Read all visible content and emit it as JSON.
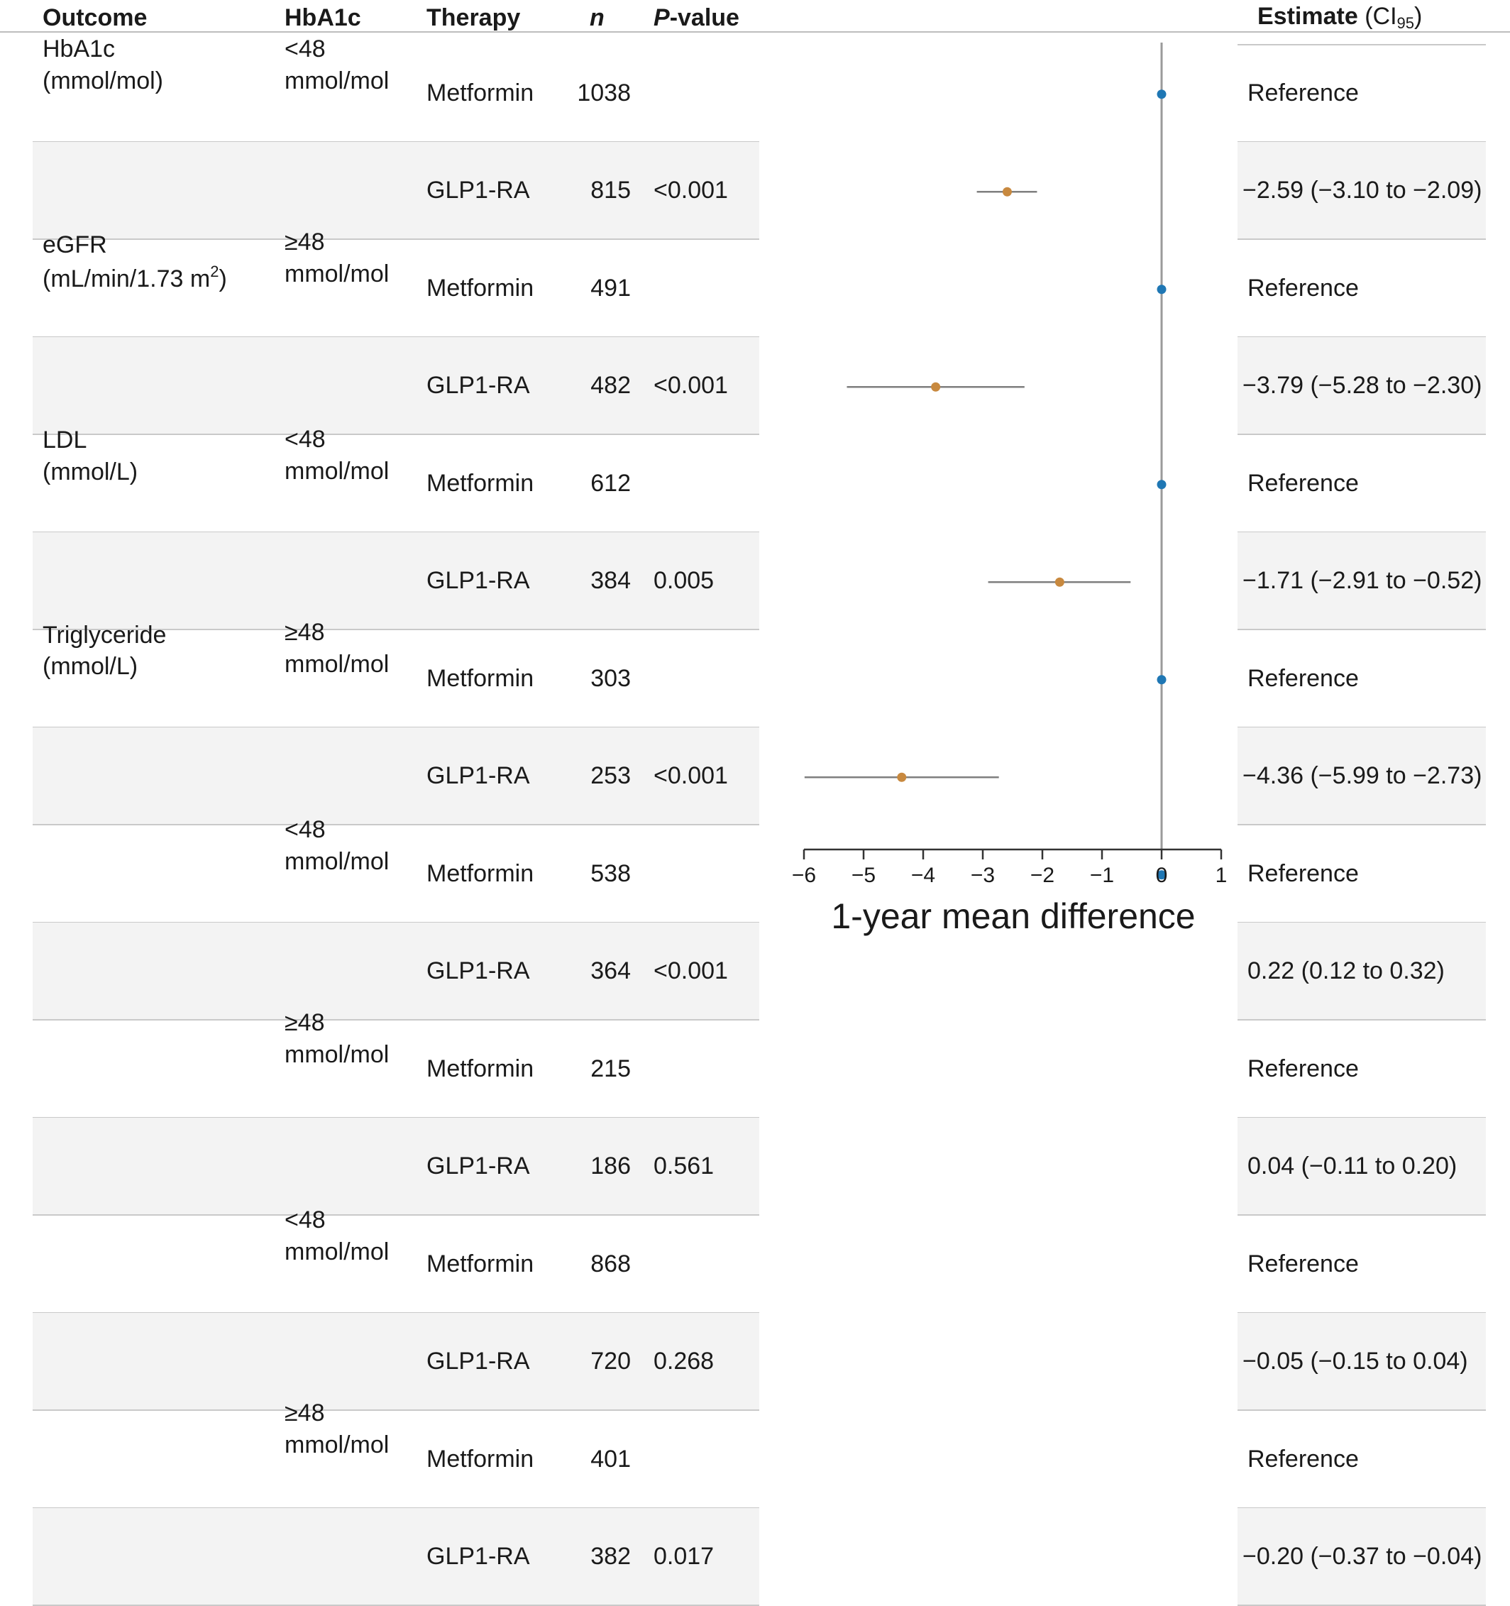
{
  "headers": {
    "outcome": "Outcome",
    "hba1c": "HbA1c",
    "therapy": "Therapy",
    "n": "n",
    "p_italic": "P",
    "p_rest": "-value",
    "estimate": "Estimate",
    "ci_open": "(CI",
    "ci_sub": "95",
    "ci_close": ")"
  },
  "outcomes": [
    {
      "line1": "HbA1c",
      "line2": "(mmol/mol)",
      "line2_sup": ""
    },
    {
      "line1": "eGFR",
      "line2": "(mL/min/1.73 m",
      "line2_sup": "2",
      "line2_end": ")"
    },
    {
      "line1": "LDL",
      "line2": "(mmol/L)",
      "line2_sup": ""
    },
    {
      "line1": "Triglyceride",
      "line2": "(mmol/L)",
      "line2_sup": ""
    }
  ],
  "hba1c_groups": [
    {
      "line1": "<48",
      "line2": "mmol/mol"
    },
    {
      "line1": "≥48",
      "line2": "mmol/mol"
    },
    {
      "line1": "<48",
      "line2": "mmol/mol"
    },
    {
      "line1": "≥48",
      "line2": "mmol/mol"
    },
    {
      "line1": "<48",
      "line2": "mmol/mol"
    },
    {
      "line1": "≥48",
      "line2": "mmol/mol"
    },
    {
      "line1": "<48",
      "line2": "mmol/mol"
    },
    {
      "line1": "≥48",
      "line2": "mmol/mol"
    }
  ],
  "colors": {
    "reference": "#1f77b4",
    "glp1": "#c8893f",
    "ci_line": "#7f7f7f",
    "zero_line": "#9a9a9a",
    "band": "#f3f3f3"
  },
  "chart_data": {
    "type": "scatter",
    "subtype": "forest",
    "xlabel": "1-year mean difference",
    "xlim": [
      -6,
      1
    ],
    "xticks": [
      -6,
      -5,
      -4,
      -3,
      -2,
      -1,
      0,
      1
    ],
    "xtick_labels": [
      "−6",
      "−5",
      "−4",
      "−3",
      "−2",
      "−1",
      "0",
      "1"
    ],
    "rows": [
      {
        "therapy": "Metformin",
        "n": "1038",
        "p": "",
        "estimate": 0,
        "low": null,
        "high": null,
        "label": "Reference"
      },
      {
        "therapy": "GLP1-RA",
        "n": "815",
        "p": "<0.001",
        "estimate": -2.59,
        "low": -3.1,
        "high": -2.09,
        "label": "−2.59 (−3.10 to −2.09)"
      },
      {
        "therapy": "Metformin",
        "n": "491",
        "p": "",
        "estimate": 0,
        "low": null,
        "high": null,
        "label": "Reference"
      },
      {
        "therapy": "GLP1-RA",
        "n": "482",
        "p": "<0.001",
        "estimate": -3.79,
        "low": -5.28,
        "high": -2.3,
        "label": "−3.79 (−5.28 to −2.30)"
      },
      {
        "therapy": "Metformin",
        "n": "612",
        "p": "",
        "estimate": 0,
        "low": null,
        "high": null,
        "label": "Reference"
      },
      {
        "therapy": "GLP1-RA",
        "n": "384",
        "p": "0.005",
        "estimate": -1.71,
        "low": -2.91,
        "high": -0.52,
        "label": "−1.71 (−2.91 to −0.52)"
      },
      {
        "therapy": "Metformin",
        "n": "303",
        "p": "",
        "estimate": 0,
        "low": null,
        "high": null,
        "label": "Reference"
      },
      {
        "therapy": "GLP1-RA",
        "n": "253",
        "p": "<0.001",
        "estimate": -4.36,
        "low": -5.99,
        "high": -2.73,
        "label": "−4.36 (−5.99 to −2.73)"
      },
      {
        "therapy": "Metformin",
        "n": "538",
        "p": "",
        "estimate": 0,
        "low": null,
        "high": null,
        "label": "Reference"
      },
      {
        "therapy": "GLP1-RA",
        "n": "364",
        "p": "<0.001",
        "estimate": 0.22,
        "low": 0.12,
        "high": 0.32,
        "label": "0.22 (0.12 to 0.32)"
      },
      {
        "therapy": "Metformin",
        "n": "215",
        "p": "",
        "estimate": 0,
        "low": null,
        "high": null,
        "label": "Reference"
      },
      {
        "therapy": "GLP1-RA",
        "n": "186",
        "p": "0.561",
        "estimate": 0.04,
        "low": -0.11,
        "high": 0.2,
        "label": "0.04 (−0.11 to 0.20)"
      },
      {
        "therapy": "Metformin",
        "n": "868",
        "p": "",
        "estimate": 0,
        "low": null,
        "high": null,
        "label": "Reference"
      },
      {
        "therapy": "GLP1-RA",
        "n": "720",
        "p": "0.268",
        "estimate": -0.05,
        "low": -0.15,
        "high": 0.04,
        "label": "−0.05 (−0.15 to 0.04)"
      },
      {
        "therapy": "Metformin",
        "n": "401",
        "p": "",
        "estimate": 0,
        "low": null,
        "high": null,
        "label": "Reference"
      },
      {
        "therapy": "GLP1-RA",
        "n": "382",
        "p": "0.017",
        "estimate": -0.2,
        "low": -0.37,
        "high": -0.04,
        "label": "−0.20 (−0.37 to −0.04)"
      }
    ]
  }
}
